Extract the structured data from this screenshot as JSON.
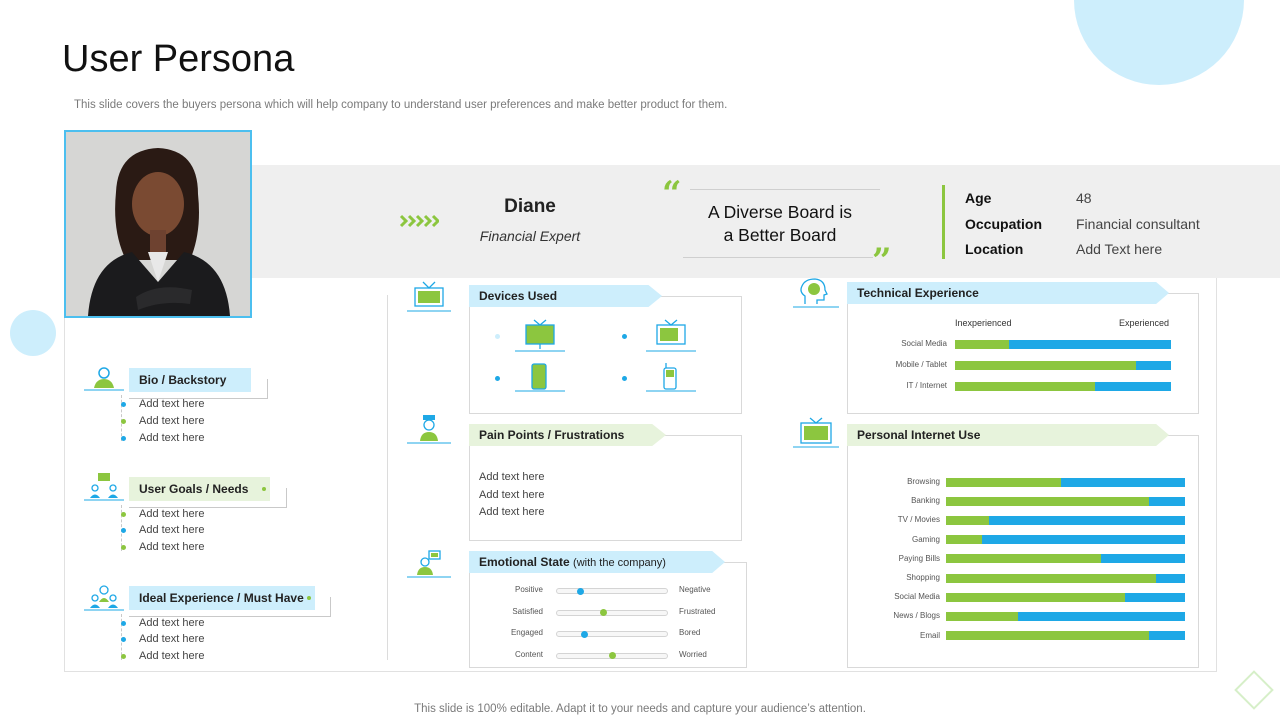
{
  "header": {
    "title": "User Persona",
    "subtitle": "This slide covers the buyers persona which will help company to understand user preferences and make better product for them."
  },
  "persona": {
    "name": "Diane",
    "role": "Financial Expert",
    "quote_line1": "A Diverse Board is",
    "quote_line2": "a Better Board"
  },
  "info": [
    {
      "label": "Age",
      "value": "48"
    },
    {
      "label": "Occupation",
      "value": "Financial consultant"
    },
    {
      "label": "Location",
      "value": "Add Text here"
    }
  ],
  "left_sections": [
    {
      "label": "Bio / Backstory",
      "items": [
        "Add text here",
        "Add text here",
        "Add text here"
      ]
    },
    {
      "label": "User Goals / Needs",
      "items": [
        "Add text here",
        "Add text here",
        "Add text here"
      ]
    },
    {
      "label": "Ideal Experience / Must Have",
      "items": [
        "Add text here",
        "Add text here",
        "Add text here"
      ]
    }
  ],
  "devices": {
    "label": "Devices Used",
    "items": [
      "monitor-icon",
      "tv-icon",
      "smartphone-icon",
      "mobile-phone-icon"
    ]
  },
  "pain_points": {
    "label": "Pain Points / Frustrations",
    "items": [
      "Add text here",
      "Add text here",
      "Add text here"
    ]
  },
  "emotional": {
    "label": "Emotional State",
    "label_suffix": "(with the company)",
    "rows": [
      {
        "left": "Positive",
        "right": "Negative",
        "level": 0.22
      },
      {
        "left": "Satisfied",
        "right": "Frustrated",
        "level": 0.42
      },
      {
        "left": "Engaged",
        "right": "Bored",
        "level": 0.25
      },
      {
        "left": "Content",
        "right": "Worried",
        "level": 0.5
      }
    ]
  },
  "technical": {
    "label": "Technical Experience",
    "left_heading": "Inexperienced",
    "right_heading": "Experienced",
    "rows": [
      {
        "label": "Social Media",
        "value": 0.25
      },
      {
        "label": "Mobile / Tablet",
        "value": 0.84
      },
      {
        "label": "IT / Internet",
        "value": 0.65
      }
    ]
  },
  "internet": {
    "label": "Personal Internet Use",
    "rows": [
      {
        "label": "Browsing",
        "value": 0.48
      },
      {
        "label": "Banking",
        "value": 0.85
      },
      {
        "label": "TV  / Movies",
        "value": 0.18
      },
      {
        "label": "Gaming",
        "value": 0.15
      },
      {
        "label": "Paying Bills",
        "value": 0.65
      },
      {
        "label": "Shopping",
        "value": 0.88
      },
      {
        "label": "Social Media",
        "value": 0.75
      },
      {
        "label": "News / Blogs",
        "value": 0.3
      },
      {
        "label": "Email",
        "value": 0.85
      }
    ]
  },
  "footer": "This slide is 100% editable. Adapt it to your needs and capture your audience’s attention.",
  "colors": {
    "green": "#8cc63f",
    "blue": "#1ea8e6",
    "light_blue": "#cdeefc",
    "light_green": "#e7f3dc"
  }
}
